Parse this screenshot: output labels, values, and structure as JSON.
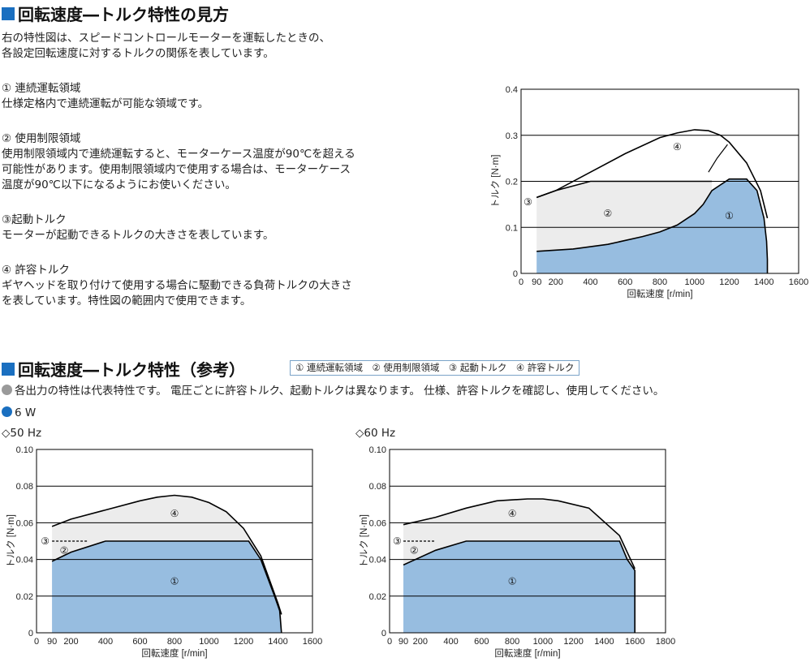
{
  "colors": {
    "region1": "#97bde0",
    "region2": "#ececec",
    "grid": "#000000",
    "accent": "#1a6fc0",
    "note_dot": "#9a9a9a"
  },
  "section1": {
    "title": "回転速度―トルク特性の見方",
    "intro": [
      "右の特性図は、スピードコントロールモーターを運転したときの、",
      "各設定回転速度に対するトルクの関係を表しています。"
    ],
    "items": [
      {
        "heading": "① 連続運転領域",
        "lines": [
          "仕様定格内で連続運転が可能な領域です。"
        ]
      },
      {
        "heading": "② 使用制限領域",
        "lines": [
          "使用制限領域内で連続運転すると、モーターケース温度が90℃を超える",
          "可能性があります。使用制限領域内で使用する場合は、モーターケース",
          "温度が90℃以下になるようにお使いください。"
        ]
      },
      {
        "heading": "③起動トルク",
        "lines": [
          "モーターが起動できるトルクの大きさを表しています。"
        ]
      },
      {
        "heading": "④ 許容トルク",
        "lines": [
          "ギヤヘッドを取り付けて使用する場合に駆動できる負荷トルクの大きさ",
          "を表しています。特性図の範囲内で使用できます。"
        ]
      }
    ]
  },
  "section2": {
    "title": "回転速度―トルク特性（参考）",
    "legend": "① 連続運転領域　② 使用制限領域　③ 起動トルク　④ 許容トルク",
    "note": "各出力の特性は代表特性です。 電圧ごとに許容トルク、起動トルクは異なります。 仕様、許容トルクを確認し、使用してください。",
    "output": "6 W"
  },
  "chart_data": [
    {
      "type": "area",
      "title": "",
      "xlabel": "回転速度 [r/min]",
      "ylabel": "トルク [N·m]",
      "xlim": [
        0,
        1600
      ],
      "ylim": [
        0,
        0.4
      ],
      "xticks": [
        0,
        90,
        200,
        400,
        600,
        800,
        1000,
        1200,
        1400,
        1600
      ],
      "xticklabels": [
        "0",
        "90",
        "200",
        "400",
        "600",
        "800",
        "1000",
        "1200",
        "1400",
        "1600"
      ],
      "yticks": [
        0,
        0.1,
        0.2,
        0.3,
        0.4
      ],
      "yticklabels": [
        "0",
        "0.1",
        "0.2",
        "0.3",
        "0.4"
      ],
      "grid": "horizontal",
      "labels": [
        "①",
        "②",
        "③",
        "④"
      ],
      "series": [
        {
          "name": "① 連続運転領域",
          "x": [
            90,
            300,
            500,
            700,
            800,
            900,
            1000,
            1050,
            1100,
            1200,
            1300,
            1360,
            1400,
            1415,
            1420,
            1420
          ],
          "y": [
            0.048,
            0.053,
            0.063,
            0.08,
            0.09,
            0.105,
            0.13,
            0.15,
            0.18,
            0.205,
            0.205,
            0.18,
            0.12,
            0.07,
            0.03,
            0
          ]
        },
        {
          "name": "② 使用制限領域",
          "x": [
            90,
            200,
            400,
            600,
            800,
            900,
            1000,
            1100
          ],
          "y": [
            0.165,
            0.18,
            0.2,
            0.2,
            0.2,
            0.2,
            0.2,
            0.2
          ]
        },
        {
          "name": "許容トルク",
          "x": [
            90,
            200,
            400,
            600,
            800,
            900,
            1000,
            1080,
            1150,
            1200,
            1300,
            1380,
            1420
          ],
          "y": [
            0.165,
            0.18,
            0.22,
            0.26,
            0.295,
            0.305,
            0.312,
            0.31,
            0.3,
            0.285,
            0.24,
            0.18,
            0.12
          ]
        },
        {
          "name": "起動トルク",
          "x": [
            1080,
            1130,
            1190
          ],
          "y": [
            0.22,
            0.25,
            0.28
          ]
        }
      ]
    },
    {
      "type": "area",
      "title": "50 Hz",
      "xlabel": "回転速度 [r/min]",
      "ylabel": "トルク [N·m]",
      "xlim": [
        0,
        1600
      ],
      "ylim": [
        0,
        0.1
      ],
      "xticks": [
        0,
        90,
        200,
        400,
        600,
        800,
        1000,
        1200,
        1400,
        1600
      ],
      "xticklabels": [
        "0",
        "90",
        "200",
        "400",
        "600",
        "800",
        "1000",
        "1200",
        "1400",
        "1600"
      ],
      "yticks": [
        0,
        0.02,
        0.04,
        0.06,
        0.08,
        0.1
      ],
      "yticklabels": [
        "0",
        "0.02",
        "0.04",
        "0.06",
        "0.08",
        "0.10"
      ],
      "grid": "horizontal",
      "labels": [
        "①",
        "②",
        "③",
        "④"
      ],
      "series": [
        {
          "name": "① 連続運転領域",
          "x": [
            90,
            200,
            400,
            600,
            800,
            1000,
            1200,
            1230,
            1300,
            1380,
            1410,
            1420
          ],
          "y": [
            0.039,
            0.044,
            0.05,
            0.05,
            0.05,
            0.05,
            0.05,
            0.05,
            0.04,
            0.02,
            0.012,
            0
          ]
        },
        {
          "name": "許容トルク",
          "x": [
            90,
            200,
            400,
            600,
            700,
            800,
            900,
            1000,
            1100,
            1200,
            1300,
            1400,
            1420
          ],
          "y": [
            0.058,
            0.062,
            0.067,
            0.072,
            0.074,
            0.075,
            0.074,
            0.071,
            0.066,
            0.057,
            0.042,
            0.016,
            0.01
          ]
        },
        {
          "name": "起動トルク",
          "x": [
            90,
            300
          ],
          "y": [
            0.05,
            0.05
          ]
        }
      ]
    },
    {
      "type": "area",
      "title": "60 Hz",
      "xlabel": "回転速度 [r/min]",
      "ylabel": "トルク [N·m]",
      "xlim": [
        0,
        1800
      ],
      "ylim": [
        0,
        0.1
      ],
      "xticks": [
        0,
        90,
        200,
        400,
        600,
        800,
        1000,
        1200,
        1400,
        1600,
        1800
      ],
      "xticklabels": [
        "0",
        "90",
        "200",
        "400",
        "600",
        "800",
        "1000",
        "1200",
        "1400",
        "1600",
        "1800"
      ],
      "yticks": [
        0,
        0.02,
        0.04,
        0.06,
        0.08,
        0.1
      ],
      "yticklabels": [
        "0",
        "0.02",
        "0.04",
        "0.06",
        "0.08",
        "0.10"
      ],
      "grid": "horizontal",
      "labels": [
        "①",
        "②",
        "③",
        "④"
      ],
      "series": [
        {
          "name": "① 連続運転領域",
          "x": [
            90,
            300,
            500,
            700,
            900,
            1100,
            1300,
            1500,
            1550,
            1600,
            1600
          ],
          "y": [
            0.037,
            0.045,
            0.05,
            0.05,
            0.05,
            0.05,
            0.05,
            0.05,
            0.04,
            0.034,
            0
          ]
        },
        {
          "name": "許容トルク",
          "x": [
            90,
            300,
            500,
            700,
            900,
            1000,
            1100,
            1300,
            1500,
            1600
          ],
          "y": [
            0.059,
            0.063,
            0.068,
            0.072,
            0.073,
            0.073,
            0.072,
            0.068,
            0.053,
            0.035
          ]
        },
        {
          "name": "起動トルク",
          "x": [
            90,
            300
          ],
          "y": [
            0.05,
            0.05
          ]
        }
      ]
    }
  ]
}
